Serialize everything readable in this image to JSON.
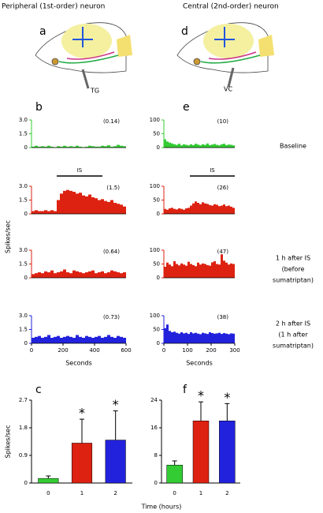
{
  "headers": {
    "left": "Peripheral (1st-order) neuron",
    "right": "Central (2nd-order) neuron"
  },
  "panel_labels": {
    "a": "a",
    "b": "b",
    "c": "c",
    "d": "d",
    "e": "e",
    "f": "f"
  },
  "drawing_labels": {
    "left": "TG",
    "right": "VC"
  },
  "condition_labels": {
    "baseline": [
      "Baseline"
    ],
    "one_hour": [
      "1 h after IS",
      "(before",
      "sumatriptan)"
    ],
    "two_hour": [
      "2 h after IS",
      "(1 h after",
      "sumatriptan)"
    ]
  },
  "histogram_ylabel": "Spikes/sec",
  "bar_xlabel": "Time (hours)",
  "chart_data": [
    {
      "type": "histogram",
      "color": "#33cc33",
      "annotation": "(0.14)",
      "xlim": [
        0,
        600
      ],
      "ylim": [
        0,
        3
      ],
      "yticks": [
        {
          "value": 3,
          "label": "3.0"
        },
        {
          "value": 1.5,
          "label": "1.5"
        },
        0
      ],
      "bins": [
        0,
        20,
        40,
        60,
        80,
        100,
        120,
        140,
        160,
        180,
        200,
        220,
        240,
        260,
        280,
        300,
        320,
        340,
        360,
        380,
        400,
        420,
        440,
        460,
        480,
        500,
        520,
        540,
        560,
        580,
        600
      ],
      "values": [
        0.1,
        0.2,
        0.1,
        0.15,
        0.1,
        0.2,
        0.1,
        0.05,
        0.15,
        0.1,
        0.2,
        0.1,
        0.15,
        0.1,
        0.2,
        0.1,
        0.05,
        0.1,
        0.2,
        0.15,
        0.1,
        0.1,
        0.2,
        0.15,
        0.25,
        0.1,
        0.15,
        0.3,
        0.2,
        0.15
      ]
    },
    {
      "type": "histogram",
      "color": "#dd2211",
      "annotation": "(1.5)",
      "interval": [
        160,
        450
      ],
      "interval_label": "IS",
      "xlim": [
        0,
        600
      ],
      "ylim": [
        0,
        3
      ],
      "yticks": [
        {
          "value": 3,
          "label": "3.0"
        },
        {
          "value": 1.5,
          "label": "1.5"
        },
        0
      ],
      "bins": [
        0,
        20,
        40,
        60,
        80,
        100,
        120,
        140,
        160,
        180,
        200,
        220,
        240,
        260,
        280,
        300,
        320,
        340,
        360,
        380,
        400,
        420,
        440,
        460,
        480,
        500,
        520,
        540,
        560,
        580,
        600
      ],
      "values": [
        0.3,
        0.4,
        0.3,
        0.3,
        0.4,
        0.3,
        0.4,
        0.3,
        1.5,
        2.2,
        2.5,
        2.6,
        2.5,
        2.4,
        2.2,
        2.3,
        2.0,
        1.9,
        2.1,
        1.8,
        1.7,
        1.5,
        1.6,
        1.4,
        1.3,
        1.5,
        1.2,
        1.1,
        1.0,
        0.8
      ]
    },
    {
      "type": "histogram",
      "color": "#dd2211",
      "annotation": "(0.64)",
      "xlim": [
        0,
        600
      ],
      "ylim": [
        0,
        3
      ],
      "yticks": [
        {
          "value": 3,
          "label": "3.0"
        },
        {
          "value": 1.5,
          "label": "1.5"
        },
        0
      ],
      "bins": [
        0,
        20,
        40,
        60,
        80,
        100,
        120,
        140,
        160,
        180,
        200,
        220,
        240,
        260,
        280,
        300,
        320,
        340,
        360,
        380,
        400,
        420,
        440,
        460,
        480,
        500,
        520,
        540,
        560,
        580,
        600
      ],
      "values": [
        0.4,
        0.5,
        0.6,
        0.5,
        0.7,
        0.6,
        0.8,
        0.5,
        0.6,
        0.7,
        0.9,
        0.6,
        0.5,
        0.8,
        0.7,
        0.6,
        0.5,
        0.6,
        0.7,
        0.8,
        0.5,
        0.6,
        0.7,
        0.5,
        0.6,
        0.8,
        0.7,
        0.6,
        0.5,
        0.6
      ]
    },
    {
      "type": "histogram",
      "color": "#2222dd",
      "annotation": "(0.73)",
      "xlim": [
        0,
        600
      ],
      "ylim": [
        0,
        3
      ],
      "xlabel": "Seconds",
      "yticks": [
        {
          "value": 3,
          "label": "3.0"
        },
        {
          "value": 1.5,
          "label": "1.5"
        },
        0
      ],
      "xticks": [
        0,
        200,
        400,
        600
      ],
      "bins": [
        0,
        20,
        40,
        60,
        80,
        100,
        120,
        140,
        160,
        180,
        200,
        220,
        240,
        260,
        280,
        300,
        320,
        340,
        360,
        380,
        400,
        420,
        440,
        460,
        480,
        500,
        520,
        540,
        560,
        580,
        600
      ],
      "values": [
        0.6,
        0.7,
        0.8,
        0.6,
        0.7,
        0.9,
        0.6,
        0.7,
        0.8,
        0.6,
        0.7,
        0.8,
        0.7,
        0.6,
        0.9,
        0.7,
        0.6,
        0.8,
        0.7,
        0.6,
        0.7,
        0.8,
        0.6,
        0.7,
        0.9,
        0.7,
        0.6,
        0.8,
        0.7,
        0.6
      ]
    },
    {
      "type": "histogram",
      "color": "#33cc33",
      "annotation": "(10)",
      "xlim": [
        0,
        300
      ],
      "ylim": [
        0,
        100
      ],
      "yticks": [
        100,
        50,
        0
      ],
      "bins": [
        0,
        10,
        20,
        30,
        40,
        50,
        60,
        70,
        80,
        90,
        100,
        110,
        120,
        130,
        140,
        150,
        160,
        170,
        180,
        190,
        200,
        210,
        220,
        230,
        240,
        250,
        260,
        270,
        280,
        290,
        300
      ],
      "values": [
        30,
        22,
        18,
        15,
        12,
        10,
        14,
        8,
        12,
        10,
        8,
        12,
        9,
        14,
        11,
        8,
        12,
        10,
        15,
        9,
        11,
        13,
        10,
        8,
        12,
        14,
        9,
        11,
        10,
        8
      ]
    },
    {
      "type": "histogram",
      "color": "#dd2211",
      "annotation": "(26)",
      "interval": [
        110,
        300
      ],
      "interval_label": "IS",
      "xlim": [
        0,
        300
      ],
      "ylim": [
        0,
        100
      ],
      "yticks": [
        100,
        50,
        0
      ],
      "bins": [
        0,
        10,
        20,
        30,
        40,
        50,
        60,
        70,
        80,
        90,
        100,
        110,
        120,
        130,
        140,
        150,
        160,
        170,
        180,
        190,
        200,
        210,
        220,
        230,
        240,
        250,
        260,
        270,
        280,
        290,
        300
      ],
      "values": [
        18,
        15,
        20,
        22,
        18,
        16,
        20,
        18,
        15,
        20,
        22,
        30,
        38,
        45,
        40,
        35,
        42,
        38,
        36,
        32,
        30,
        35,
        33,
        28,
        30,
        34,
        28,
        30,
        26,
        22
      ]
    },
    {
      "type": "histogram",
      "color": "#dd2211",
      "annotation": "(47)",
      "xlim": [
        0,
        300
      ],
      "ylim": [
        0,
        100
      ],
      "yticks": [
        100,
        50,
        0
      ],
      "bins": [
        0,
        10,
        20,
        30,
        40,
        50,
        60,
        70,
        80,
        90,
        100,
        110,
        120,
        130,
        140,
        150,
        160,
        170,
        180,
        190,
        200,
        210,
        220,
        230,
        240,
        250,
        260,
        270,
        280,
        290,
        300
      ],
      "values": [
        40,
        55,
        48,
        42,
        60,
        50,
        45,
        52,
        48,
        44,
        58,
        50,
        46,
        42,
        55,
        48,
        52,
        50,
        46,
        44,
        56,
        60,
        50,
        48,
        85,
        62,
        55,
        48,
        52,
        50
      ]
    },
    {
      "type": "histogram",
      "color": "#2222dd",
      "annotation": "(38)",
      "xlim": [
        0,
        300
      ],
      "ylim": [
        0,
        100
      ],
      "yticks": [
        100,
        50,
        0
      ],
      "xticks": [
        0,
        100,
        200,
        300
      ],
      "xlabel": "Seconds",
      "bins": [
        0,
        10,
        20,
        30,
        40,
        50,
        60,
        70,
        80,
        90,
        100,
        110,
        120,
        130,
        140,
        150,
        160,
        170,
        180,
        190,
        200,
        210,
        220,
        230,
        240,
        250,
        260,
        270,
        280,
        290,
        300
      ],
      "values": [
        55,
        68,
        45,
        40,
        42,
        38,
        35,
        40,
        36,
        38,
        34,
        40,
        36,
        38,
        35,
        33,
        38,
        36,
        34,
        40,
        37,
        35,
        36,
        38,
        34,
        37,
        35,
        33,
        36,
        35
      ]
    },
    {
      "type": "bar",
      "ylabel": "Spikes/sec",
      "categories": [
        "0",
        "1",
        "2"
      ],
      "values": [
        0.15,
        1.3,
        1.4
      ],
      "errors": [
        0.08,
        0.78,
        0.95
      ],
      "colors": [
        "#33cc33",
        "#dd2211",
        "#2222dd"
      ],
      "significance": [
        null,
        "*",
        "*"
      ],
      "ylim": [
        0,
        2.7
      ],
      "yticks": [
        0,
        0.9,
        1.8,
        2.7
      ]
    },
    {
      "type": "bar",
      "categories": [
        "0",
        "1",
        "2"
      ],
      "values": [
        5.2,
        18,
        18
      ],
      "errors": [
        1.2,
        5.5,
        5
      ],
      "colors": [
        "#33cc33",
        "#dd2211",
        "#2222dd"
      ],
      "significance": [
        null,
        "*",
        "*"
      ],
      "ylim": [
        0,
        24
      ],
      "yticks": [
        0,
        8,
        16,
        24
      ]
    }
  ]
}
